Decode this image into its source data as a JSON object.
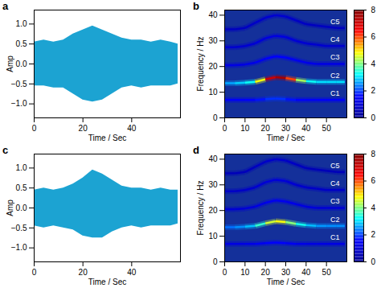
{
  "chart_data": [
    {
      "label": "a",
      "type": "area",
      "x_label": "Time / Sec",
      "y_label": "Amp",
      "color": "#1ca3d2",
      "xlim": [
        0,
        60
      ],
      "xticks": [
        0,
        20,
        40
      ],
      "ylim": [
        -1.35,
        1.35
      ],
      "yticks": [
        -1,
        -0.5,
        0,
        0.5,
        1
      ],
      "x": [
        0,
        4,
        8,
        12,
        16,
        20,
        24,
        28,
        32,
        36,
        40,
        44,
        48,
        52,
        56,
        59
      ],
      "upper": [
        0.55,
        0.6,
        0.55,
        0.6,
        0.75,
        0.85,
        0.95,
        0.85,
        0.75,
        0.65,
        0.6,
        0.6,
        0.55,
        0.6,
        0.55,
        0.5
      ],
      "lower": [
        -0.55,
        -0.55,
        -0.6,
        -0.6,
        -0.75,
        -0.9,
        -0.95,
        -0.9,
        -0.75,
        -0.6,
        -0.55,
        -0.6,
        -0.55,
        -0.55,
        -0.55,
        -0.5
      ]
    },
    {
      "label": "b",
      "type": "spectrogram",
      "x_label": "Time / Sec",
      "y_label": "Frequency / Hz",
      "xlim": [
        0,
        60
      ],
      "xticks": [
        0,
        10,
        20,
        30,
        40,
        50
      ],
      "ylim": [
        0,
        42
      ],
      "yticks": [
        0,
        10,
        20,
        30,
        40
      ],
      "colorbar": {
        "range": [
          0,
          8
        ],
        "ticks": [
          0,
          2,
          4,
          6,
          8
        ]
      },
      "x": [
        0,
        5,
        10,
        15,
        20,
        25,
        30,
        35,
        40,
        45,
        50,
        55,
        59
      ],
      "series": [
        {
          "name": "C1",
          "values": [
            7,
            7,
            7,
            7,
            7.3,
            7.5,
            7.3,
            7,
            7,
            7,
            7,
            7,
            7
          ],
          "intensity": [
            1.5,
            1.5,
            1.5,
            1.6,
            1.8,
            2,
            1.8,
            1.6,
            1.5,
            1.5,
            1.5,
            1.5,
            1.5
          ]
        },
        {
          "name": "C2",
          "values": [
            13.5,
            13.5,
            13.7,
            14,
            15,
            15.8,
            15.5,
            14.8,
            14.3,
            14,
            14,
            14,
            14
          ],
          "intensity": [
            2.5,
            2.8,
            3,
            3.5,
            6,
            8,
            7,
            5,
            3.5,
            3,
            3,
            3,
            3
          ]
        },
        {
          "name": "C3",
          "values": [
            20.5,
            20.5,
            20.8,
            21.5,
            23,
            24,
            23.5,
            22.5,
            21.5,
            21,
            21,
            21,
            21
          ],
          "intensity": [
            1.2,
            1.2,
            1.2,
            1.3,
            1.5,
            1.6,
            1.5,
            1.4,
            1.3,
            1.2,
            1.2,
            1.2,
            1.2
          ]
        },
        {
          "name": "C4",
          "values": [
            27.5,
            27.5,
            28,
            29,
            31,
            32,
            31.5,
            30,
            29,
            28.5,
            28,
            28,
            28
          ],
          "intensity": [
            0.9,
            0.9,
            0.9,
            1,
            1.1,
            1.2,
            1.1,
            1,
            0.9,
            0.9,
            0.9,
            0.9,
            0.9
          ]
        },
        {
          "name": "C5",
          "values": [
            34.5,
            34.5,
            35,
            37,
            39,
            40,
            39.5,
            38,
            36.5,
            36,
            35.5,
            35,
            35
          ],
          "intensity": [
            0.7,
            0.7,
            0.7,
            0.8,
            0.9,
            1,
            0.9,
            0.8,
            0.7,
            0.7,
            0.7,
            0.7,
            0.7
          ]
        }
      ]
    },
    {
      "label": "c",
      "type": "area",
      "x_label": "Time / Sec",
      "y_label": "Amp",
      "color": "#1ca3d2",
      "xlim": [
        0,
        60
      ],
      "xticks": [
        0,
        20,
        40
      ],
      "ylim": [
        -1.35,
        1.35
      ],
      "yticks": [
        -1,
        -0.5,
        0,
        0.5,
        1
      ],
      "x": [
        0,
        4,
        8,
        12,
        16,
        20,
        24,
        28,
        32,
        36,
        40,
        44,
        48,
        52,
        56,
        59
      ],
      "upper": [
        0.45,
        0.5,
        0.45,
        0.5,
        0.6,
        0.75,
        0.95,
        0.85,
        0.7,
        0.55,
        0.5,
        0.5,
        0.45,
        0.5,
        0.45,
        0.45
      ],
      "lower": [
        -0.45,
        -0.5,
        -0.45,
        -0.5,
        -0.55,
        -0.7,
        -0.75,
        -0.75,
        -0.6,
        -0.5,
        -0.45,
        -0.5,
        -0.45,
        -0.45,
        -0.45,
        -0.4
      ]
    },
    {
      "label": "d",
      "type": "spectrogram",
      "x_label": "Time / Sec",
      "y_label": "Frequency / Hz",
      "xlim": [
        0,
        60
      ],
      "xticks": [
        0,
        10,
        20,
        30,
        40,
        50
      ],
      "ylim": [
        0,
        42
      ],
      "yticks": [
        0,
        10,
        20,
        30,
        40
      ],
      "colorbar": {
        "range": [
          0,
          8
        ],
        "ticks": [
          0,
          2,
          4,
          6,
          8
        ]
      },
      "x": [
        0,
        5,
        10,
        15,
        20,
        25,
        30,
        35,
        40,
        45,
        50,
        55,
        59
      ],
      "series": [
        {
          "name": "C1",
          "values": [
            7,
            7,
            7,
            7,
            7.3,
            7.5,
            7.3,
            7,
            7,
            7,
            7,
            7,
            7
          ],
          "intensity": [
            1.2,
            1.2,
            1.2,
            1.3,
            1.5,
            1.6,
            1.5,
            1.3,
            1.2,
            1.2,
            1.2,
            1.2,
            1.2
          ]
        },
        {
          "name": "C2",
          "values": [
            13.5,
            13.5,
            13.7,
            14,
            15,
            15.8,
            15.5,
            14.8,
            14.3,
            14,
            14,
            14,
            14
          ],
          "intensity": [
            2.2,
            2.4,
            2.6,
            3,
            4,
            5,
            4.5,
            3.6,
            3,
            2.6,
            2.5,
            2.5,
            2.5
          ]
        },
        {
          "name": "C3",
          "values": [
            20.5,
            20.5,
            20.8,
            21.5,
            23,
            24,
            23.5,
            22.5,
            21.5,
            21,
            21,
            21,
            21
          ],
          "intensity": [
            1,
            1,
            1,
            1.1,
            1.3,
            1.4,
            1.3,
            1.2,
            1.1,
            1,
            1,
            1,
            1
          ]
        },
        {
          "name": "C4",
          "values": [
            27.5,
            27.5,
            28,
            29,
            31,
            32,
            31.5,
            30,
            29,
            28.5,
            28,
            28,
            28
          ],
          "intensity": [
            0.8,
            0.8,
            0.8,
            0.9,
            1,
            1.1,
            1,
            0.9,
            0.8,
            0.8,
            0.8,
            0.8,
            0.8
          ]
        },
        {
          "name": "C5",
          "values": [
            34.5,
            34.5,
            35,
            37,
            39,
            40,
            39.5,
            38,
            36.5,
            36,
            35.5,
            35,
            35
          ],
          "intensity": [
            0.6,
            0.6,
            0.6,
            0.7,
            0.8,
            0.9,
            0.8,
            0.7,
            0.6,
            0.6,
            0.6,
            0.6,
            0.6
          ]
        }
      ]
    }
  ]
}
